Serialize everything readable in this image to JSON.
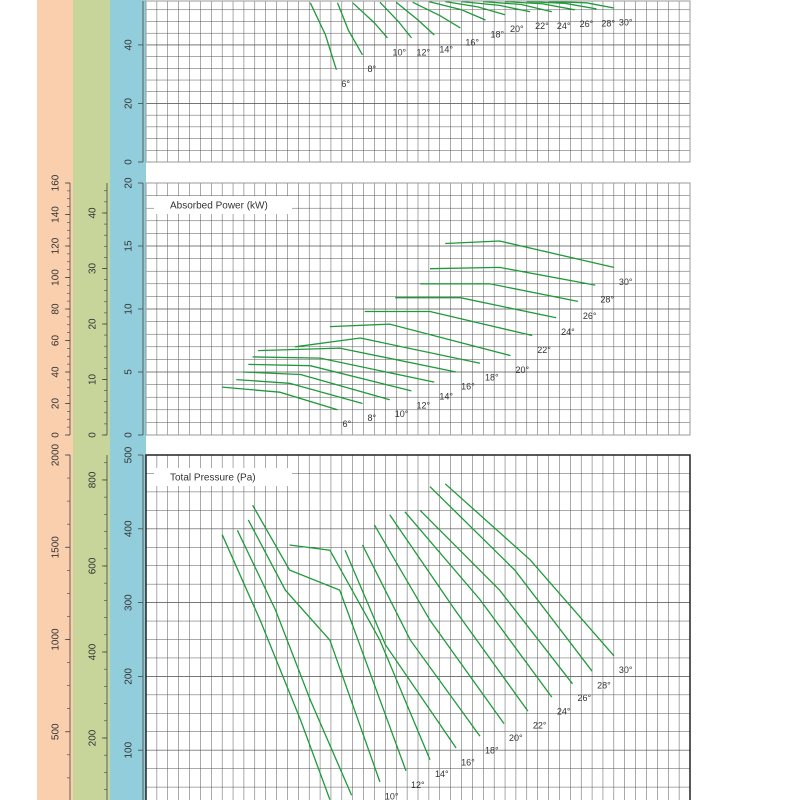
{
  "chart_data": [
    {
      "type": "line",
      "xlim": [
        0,
        50
      ],
      "ylim": [
        0,
        55
      ],
      "yticks": [
        0,
        20,
        40
      ],
      "grid": true,
      "series": [
        {
          "name": "6°",
          "color": "#1f9a3a",
          "x": [
            15.1,
            16.5,
            17.5
          ],
          "values": [
            54.4,
            43.4,
            31.5
          ]
        },
        {
          "name": "8°",
          "color": "#1f9a3a",
          "x": [
            17.6,
            18.6,
            19.9
          ],
          "values": [
            54.4,
            45.0,
            36.6
          ]
        },
        {
          "name": "10°",
          "color": "#1f9a3a",
          "x": [
            19.0,
            21.0,
            22.2
          ],
          "values": [
            54.4,
            47.5,
            42.4
          ]
        },
        {
          "name": "12°",
          "color": "#1f9a3a",
          "x": [
            21.5,
            23.2,
            24.4
          ],
          "values": [
            54.6,
            48.0,
            42.4
          ]
        },
        {
          "name": "14°",
          "color": "#1f9a3a",
          "x": [
            23.0,
            25.0,
            26.5
          ],
          "values": [
            54.6,
            48.5,
            43.4
          ]
        },
        {
          "name": "16°",
          "color": "#1f9a3a",
          "x": [
            24.5,
            27.0,
            28.9
          ],
          "values": [
            54.6,
            50.0,
            45.8
          ]
        },
        {
          "name": "18°",
          "color": "#1f9a3a",
          "x": [
            26.0,
            29.0,
            31.2
          ],
          "values": [
            54.8,
            52.0,
            48.5
          ]
        },
        {
          "name": "20°",
          "color": "#1f9a3a",
          "x": [
            27.5,
            30.5,
            33.0
          ],
          "values": [
            54.8,
            53.0,
            50.3
          ]
        },
        {
          "name": "22°",
          "color": "#1f9a3a",
          "x": [
            29.0,
            32.5,
            35.3
          ],
          "values": [
            54.8,
            53.5,
            51.3
          ]
        },
        {
          "name": "24°",
          "color": "#1f9a3a",
          "x": [
            31.0,
            34.5,
            37.3
          ],
          "values": [
            54.8,
            53.8,
            51.3
          ]
        },
        {
          "name": "26°",
          "color": "#1f9a3a",
          "x": [
            33.0,
            36.5,
            39.4
          ],
          "values": [
            54.8,
            54.0,
            52.0
          ]
        },
        {
          "name": "28°",
          "color": "#1f9a3a",
          "x": [
            35.0,
            38.5,
            41.4
          ],
          "values": [
            54.8,
            54.2,
            52.3
          ]
        },
        {
          "name": "30°",
          "color": "#1f9a3a",
          "x": [
            37.0,
            40.5,
            43.0
          ],
          "values": [
            54.8,
            54.4,
            52.6
          ]
        }
      ]
    },
    {
      "type": "line",
      "title": "Absorbed Power (kW)",
      "xlim": [
        0,
        50
      ],
      "ylim": [
        0,
        20
      ],
      "yticks": [
        0,
        5,
        10,
        15,
        20
      ],
      "y2lim": [
        0,
        45.4
      ],
      "y2ticks": [
        0,
        10,
        20,
        30,
        40
      ],
      "y3lim": [
        0,
        160
      ],
      "y3ticks": [
        0,
        20,
        40,
        60,
        80,
        100,
        120,
        140,
        160
      ],
      "grid": true,
      "series": [
        {
          "name": "6°",
          "color": "#1f9a3a",
          "x": [
            7.0,
            12.3,
            17.6
          ],
          "values": [
            3.8,
            3.4,
            2.0
          ]
        },
        {
          "name": "8°",
          "color": "#1f9a3a",
          "x": [
            8.3,
            13.2,
            19.9
          ],
          "values": [
            4.4,
            4.1,
            2.5
          ]
        },
        {
          "name": "10°",
          "color": "#1f9a3a",
          "x": [
            8.9,
            14.2,
            22.4
          ],
          "values": [
            5.0,
            4.8,
            2.8
          ]
        },
        {
          "name": "12°",
          "color": "#1f9a3a",
          "x": [
            9.4,
            15.1,
            24.4
          ],
          "values": [
            5.6,
            5.5,
            3.5
          ]
        },
        {
          "name": "14°",
          "color": "#1f9a3a",
          "x": [
            9.8,
            16.0,
            26.5
          ],
          "values": [
            6.2,
            6.1,
            4.2
          ]
        },
        {
          "name": "16°",
          "color": "#1f9a3a",
          "x": [
            10.3,
            17.8,
            28.5
          ],
          "values": [
            6.7,
            6.9,
            5.0
          ]
        },
        {
          "name": "18°",
          "color": "#1f9a3a",
          "x": [
            13.7,
            19.7,
            30.7
          ],
          "values": [
            7.0,
            7.7,
            5.7
          ]
        },
        {
          "name": "20°",
          "color": "#1f9a3a",
          "x": [
            16.9,
            22.4,
            33.5
          ],
          "values": [
            8.6,
            8.8,
            6.3
          ]
        },
        {
          "name": "22°",
          "color": "#1f9a3a",
          "x": [
            20.1,
            26.1,
            35.5
          ],
          "values": [
            9.8,
            9.8,
            7.9
          ]
        },
        {
          "name": "24°",
          "color": "#1f9a3a",
          "x": [
            22.9,
            28.9,
            37.7
          ],
          "values": [
            10.9,
            10.9,
            9.3
          ]
        },
        {
          "name": "26°",
          "color": "#1f9a3a",
          "x": [
            25.2,
            31.6,
            39.7
          ],
          "values": [
            12.0,
            12.0,
            10.6
          ]
        },
        {
          "name": "28°",
          "color": "#1f9a3a",
          "x": [
            26.1,
            32.5,
            41.3
          ],
          "values": [
            13.2,
            13.3,
            11.9
          ]
        },
        {
          "name": "30°",
          "color": "#1f9a3a",
          "x": [
            27.5,
            32.5,
            43.0
          ],
          "values": [
            15.2,
            15.4,
            13.3
          ]
        }
      ]
    },
    {
      "type": "line",
      "title": "Total Pressure (Pa)",
      "xlim": [
        0,
        50
      ],
      "ylim": [
        0,
        500
      ],
      "yticks": [
        100,
        200,
        300,
        400,
        500
      ],
      "y2lim": [
        0,
        858
      ],
      "y2ticks": [
        200,
        400,
        600,
        800
      ],
      "y3lim": [
        0,
        2000
      ],
      "y3ticks": [
        500,
        1000,
        1500,
        2000
      ],
      "grid": true,
      "series": [
        {
          "name": "6°",
          "color": "#1f9a3a",
          "x": [
            7.0,
            10.5,
            14.2,
            16.9
          ],
          "values": [
            392,
            276,
            141,
            33
          ]
        },
        {
          "name": "8°",
          "color": "#1f9a3a",
          "x": [
            8.4,
            11.9,
            15.1,
            18.9
          ],
          "values": [
            398,
            290,
            168,
            39
          ]
        },
        {
          "name": "10°",
          "color": "#1f9a3a",
          "x": [
            9.4,
            12.8,
            16.9,
            21.5
          ],
          "values": [
            412,
            317,
            249,
            57
          ]
        },
        {
          "name": "12°",
          "color": "#1f9a3a",
          "x": [
            9.8,
            13.2,
            17.8,
            23.9
          ],
          "values": [
            432,
            344,
            317,
            72
          ]
        },
        {
          "name": "14°",
          "color": "#1f9a3a",
          "x": [
            13.2,
            16.9,
            21.5,
            26.1
          ],
          "values": [
            378,
            371,
            249,
            87
          ]
        },
        {
          "name": "16°",
          "color": "#1f9a3a",
          "x": [
            18.3,
            22.0,
            28.5
          ],
          "values": [
            371,
            243,
            103
          ]
        },
        {
          "name": "18°",
          "color": "#1f9a3a",
          "x": [
            19.9,
            24.3,
            30.7
          ],
          "values": [
            378,
            249,
            119
          ]
        },
        {
          "name": "20°",
          "color": "#1f9a3a",
          "x": [
            21.0,
            26.1,
            32.9
          ],
          "values": [
            405,
            276,
            136
          ]
        },
        {
          "name": "22°",
          "color": "#1f9a3a",
          "x": [
            22.4,
            28.4,
            35.1
          ],
          "values": [
            419,
            290,
            153
          ]
        },
        {
          "name": "24°",
          "color": "#1f9a3a",
          "x": [
            23.8,
            30.7,
            37.3
          ],
          "values": [
            423,
            304,
            172
          ]
        },
        {
          "name": "26°",
          "color": "#1f9a3a",
          "x": [
            25.2,
            32.5,
            39.2
          ],
          "values": [
            425,
            317,
            190
          ]
        },
        {
          "name": "28°",
          "color": "#1f9a3a",
          "x": [
            26.1,
            33.9,
            41.0
          ],
          "values": [
            457,
            344,
            207
          ]
        },
        {
          "name": "30°",
          "color": "#1f9a3a",
          "x": [
            27.5,
            35.3,
            43.0
          ],
          "values": [
            461,
            358,
            228
          ]
        }
      ]
    }
  ]
}
